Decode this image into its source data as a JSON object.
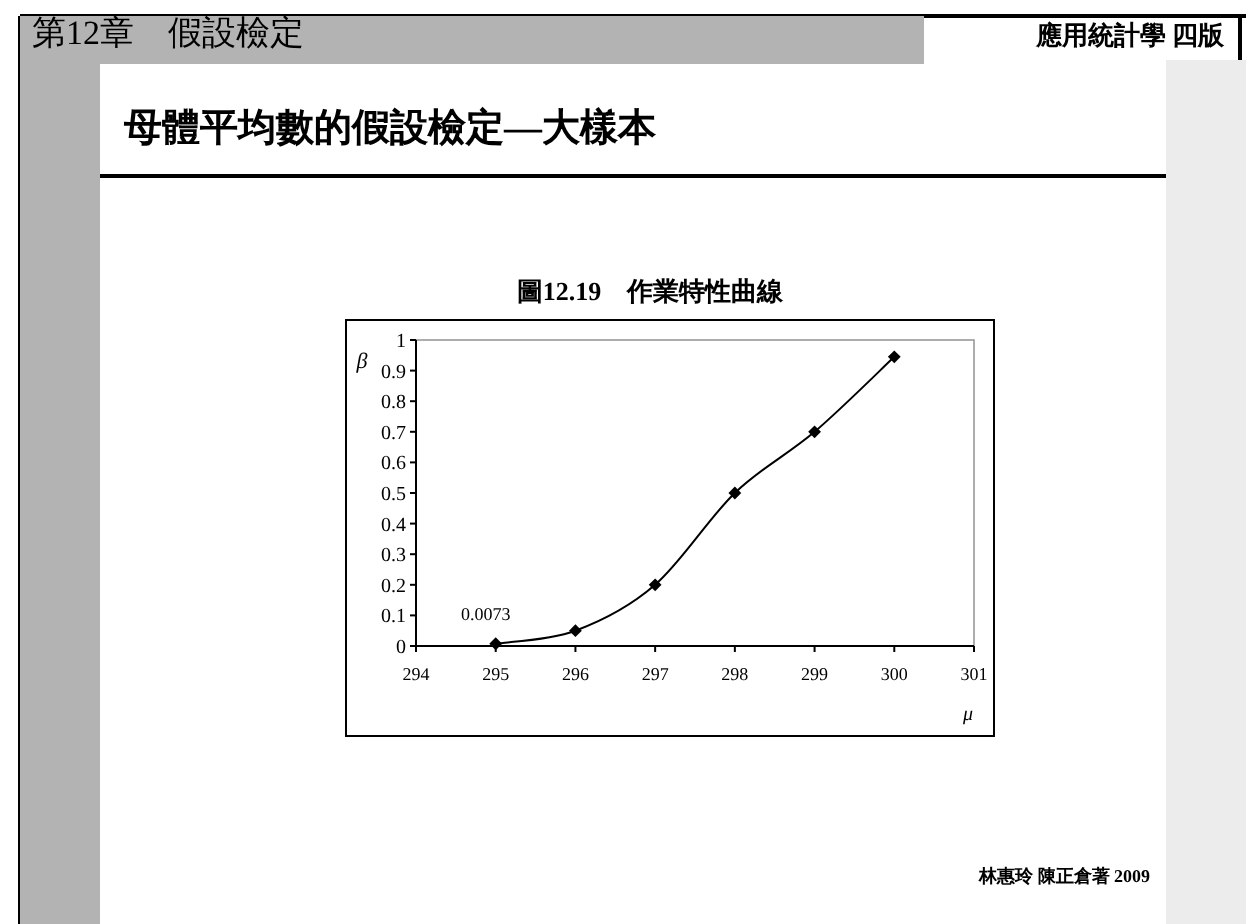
{
  "chart_data": {
    "type": "line",
    "title": "圖12.19　作業特性曲線",
    "subtitle": "母體平均數的假設檢定—大樣本",
    "xlabel": "μ",
    "ylabel": "β",
    "annotations": [
      {
        "text": "0.0073",
        "x": 295,
        "y": 0.0073
      },
      "第12章　假設檢定",
      "應用統計學 四版",
      "林惠玲 陳正倉著 2009"
    ],
    "x": [
      295,
      296,
      297,
      298,
      299,
      300
    ],
    "series": [
      {
        "color": "#000000",
        "values": [
          0.0073,
          0.05,
          0.2,
          0.5,
          0.7,
          0.945
        ]
      }
    ],
    "xlim": [
      294,
      301
    ],
    "xticks": [
      294,
      295,
      296,
      297,
      298,
      299,
      300,
      301
    ],
    "ylim": [
      0,
      1
    ],
    "yticks": [
      0,
      0.1,
      0.2,
      0.3,
      0.4,
      0.5,
      0.6,
      0.7,
      0.8,
      0.9,
      1
    ],
    "marker": "diamond",
    "line_style": "solid",
    "grid": false
  }
}
